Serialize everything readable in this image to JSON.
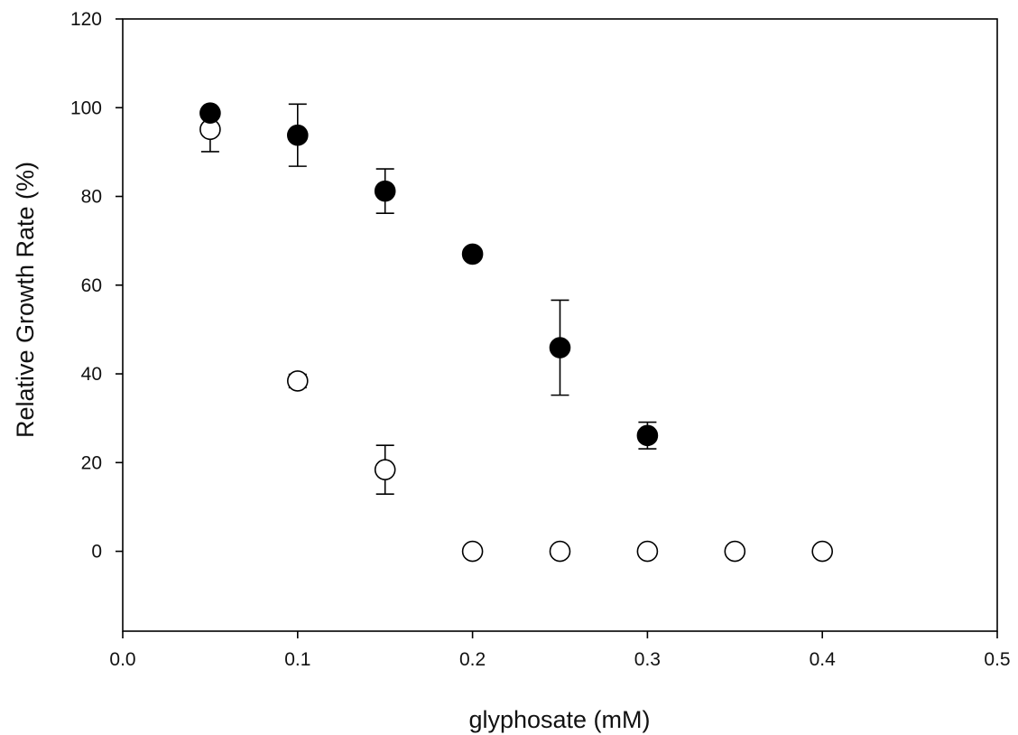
{
  "chart_data": {
    "type": "scatter",
    "title": "",
    "xlabel": "glyphosate (mM)",
    "ylabel": "Relative Growth Rate (%)",
    "xlim": [
      0.0,
      0.5
    ],
    "ylim": [
      -18,
      120
    ],
    "xticks": [
      0.0,
      0.1,
      0.2,
      0.3,
      0.4,
      0.5
    ],
    "xtick_labels": [
      "0.0",
      "0.1",
      "0.2",
      "0.3",
      "0.4",
      "0.5"
    ],
    "yticks": [
      0,
      20,
      40,
      60,
      80,
      100,
      120
    ],
    "ytick_labels": [
      "0",
      "20",
      "40",
      "60",
      "80",
      "100",
      "120"
    ],
    "grid": false,
    "legend": "none",
    "series": [
      {
        "marker": "filled-circle",
        "color": "#000000",
        "points": [
          {
            "x": 0.05,
            "y": 98.8,
            "err_low": 0,
            "err_high": 0
          },
          {
            "x": 0.1,
            "y": 93.8,
            "err_low": 7.0,
            "err_high": 7.0
          },
          {
            "x": 0.15,
            "y": 81.2,
            "err_low": 5.0,
            "err_high": 5.0
          },
          {
            "x": 0.2,
            "y": 67.0,
            "err_low": 0,
            "err_high": 0
          },
          {
            "x": 0.25,
            "y": 45.9,
            "err_low": 10.7,
            "err_high": 10.7
          },
          {
            "x": 0.3,
            "y": 26.1,
            "err_low": 3.0,
            "err_high": 3.0
          }
        ]
      },
      {
        "marker": "open-circle",
        "color": "#000000",
        "points": [
          {
            "x": 0.05,
            "y": 95.1,
            "err_low": 5.0,
            "err_high": 0
          },
          {
            "x": 0.1,
            "y": 38.4,
            "err_low": 1.5,
            "err_high": 1.5
          },
          {
            "x": 0.15,
            "y": 18.4,
            "err_low": 5.5,
            "err_high": 5.5
          },
          {
            "x": 0.2,
            "y": 0,
            "err_low": 0,
            "err_high": 0
          },
          {
            "x": 0.25,
            "y": 0,
            "err_low": 0,
            "err_high": 0
          },
          {
            "x": 0.3,
            "y": 0,
            "err_low": 0,
            "err_high": 0
          },
          {
            "x": 0.35,
            "y": 0,
            "err_low": 0,
            "err_high": 0
          },
          {
            "x": 0.4,
            "y": 0,
            "err_low": 0,
            "err_high": 0
          }
        ]
      }
    ]
  }
}
